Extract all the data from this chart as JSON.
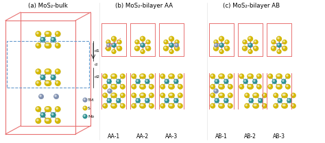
{
  "title_a": "(a) MoS₂-bulk",
  "title_b": "(b) MoS₂-bilayer AA",
  "title_c": "(c) MoS₂-bilayer AB",
  "labels_aa": [
    "AA-1",
    "AA-2",
    "AA-3"
  ],
  "labels_ab": [
    "AB-1",
    "AB-2",
    "AB-3"
  ],
  "legend_TM_label": "TM",
  "legend_S_label": "S",
  "legend_Mo_label": "Mo",
  "cell_color": "#e87070",
  "dashed_color": "#6699cc",
  "bg_color": "#ffffff",
  "S_color": "#d4b800",
  "Mo_color": "#2a9090",
  "TM_color": "#8090b0",
  "bond_color": "#888888",
  "bond_color_top": "#cc3333",
  "fig_width": 4.74,
  "fig_height": 2.09,
  "dpi": 100
}
